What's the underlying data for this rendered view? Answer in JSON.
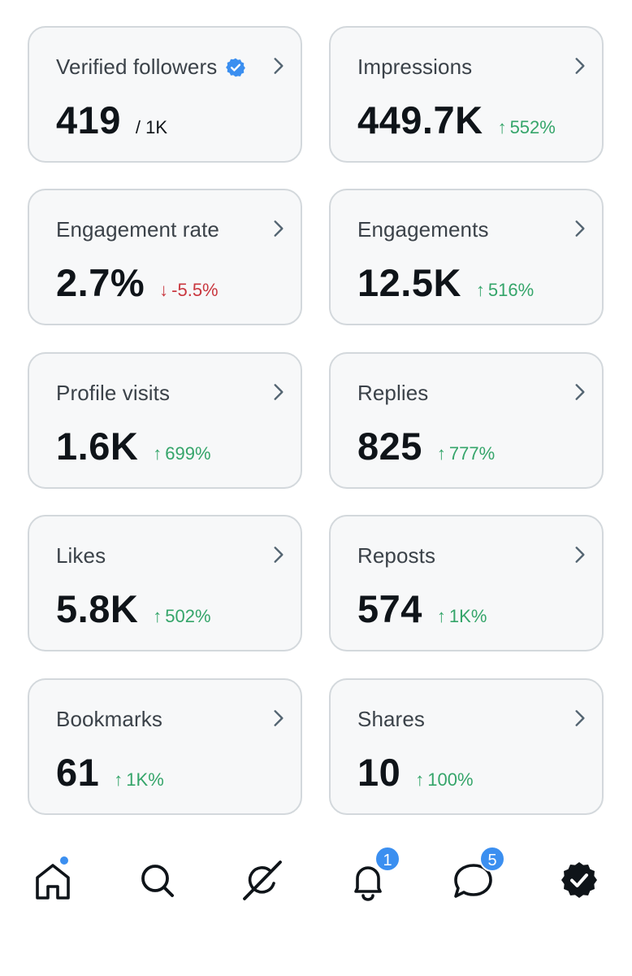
{
  "colors": {
    "accent": "#3b8ff0",
    "up": "#35a56a",
    "down": "#c9373f"
  },
  "cards": [
    {
      "label": "Verified followers",
      "value": "419",
      "sub": "/ 1K",
      "verified": true
    },
    {
      "label": "Impressions",
      "value": "449.7K",
      "change": "552%",
      "direction": "up"
    },
    {
      "label": "Engagement rate",
      "value": "2.7%",
      "change": "-5.5%",
      "direction": "down"
    },
    {
      "label": "Engagements",
      "value": "12.5K",
      "change": "516%",
      "direction": "up"
    },
    {
      "label": "Profile visits",
      "value": "1.6K",
      "change": "699%",
      "direction": "up"
    },
    {
      "label": "Replies",
      "value": "825",
      "change": "777%",
      "direction": "up"
    },
    {
      "label": "Likes",
      "value": "5.8K",
      "change": "502%",
      "direction": "up"
    },
    {
      "label": "Reposts",
      "value": "574",
      "change": "1K%",
      "direction": "up"
    },
    {
      "label": "Bookmarks",
      "value": "61",
      "change": "1K%",
      "direction": "up"
    },
    {
      "label": "Shares",
      "value": "10",
      "change": "100%",
      "direction": "up"
    }
  ],
  "nav": {
    "items": [
      {
        "name": "home",
        "icon": "home-icon"
      },
      {
        "name": "search",
        "icon": "search-icon"
      },
      {
        "name": "grok",
        "icon": "grok-icon"
      },
      {
        "name": "notifications",
        "icon": "bell-icon",
        "badge": "1"
      },
      {
        "name": "messages",
        "icon": "message-icon",
        "badge": "5"
      },
      {
        "name": "premium",
        "icon": "verified-icon"
      }
    ]
  }
}
